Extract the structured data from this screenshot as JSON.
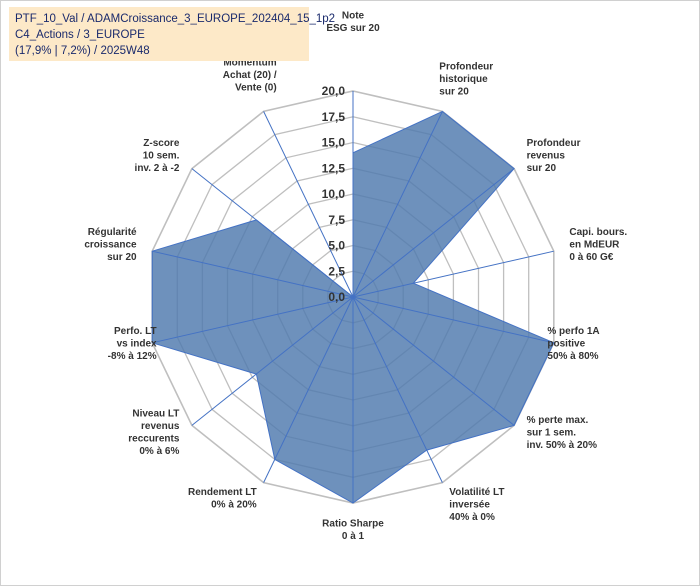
{
  "title_box": {
    "line1": "PTF_10_Val / ADAMCroissance_3_EUROPE_202404_15_1p2",
    "line2": "C4_Actions / 3_EUROPE",
    "line3": "(17,9% | 7,2%) / 2025W48"
  },
  "colors": {
    "fill": "#4e79ad",
    "stroke": "#4472c4",
    "grid": "#bfbfbf",
    "spoke": "#4472c4"
  },
  "chart_data": {
    "type": "radar",
    "r_range": [
      0,
      20
    ],
    "r_ticks": [
      "0,0",
      "2,5",
      "5,0",
      "7,5",
      "10,0",
      "12,5",
      "15,0",
      "17,5",
      "20,0"
    ],
    "categories": [
      {
        "label": [
          "Note",
          "ESG sur 20"
        ]
      },
      {
        "label": [
          "Profondeur",
          "historique",
          "sur 20"
        ]
      },
      {
        "label": [
          "Profondeur",
          "revenus",
          "sur 20"
        ]
      },
      {
        "label": [
          "Capi. bours.",
          "en MdEUR",
          "0 à 60 G€"
        ]
      },
      {
        "label": [
          "% perfo 1A",
          "positive",
          "50% à 80%"
        ]
      },
      {
        "label": [
          "% perte max.",
          "sur 1 sem.",
          "inv. 50% à 20%"
        ]
      },
      {
        "label": [
          "Volatilité LT",
          "inversée",
          "40% à 0%"
        ]
      },
      {
        "label": [
          "Ratio Sharpe",
          "0 à 1"
        ]
      },
      {
        "label": [
          "Rendement LT",
          "0% à 20%"
        ]
      },
      {
        "label": [
          "Niveau LT",
          "revenus",
          "reccurents",
          "0% à 6%"
        ]
      },
      {
        "label": [
          "Perfo. LT",
          "vs index",
          "-8% à 12%"
        ]
      },
      {
        "label": [
          "Régularité",
          "croissance",
          "sur 20"
        ]
      },
      {
        "label": [
          "Z-score",
          "10 sem.",
          "inv. 2 à -2"
        ]
      },
      {
        "label": [
          "Momentum",
          "Achat (20) /",
          "Vente (0)"
        ]
      }
    ],
    "series": [
      {
        "values": [
          14,
          20,
          20,
          6,
          20,
          20,
          16.5,
          20,
          17.5,
          12,
          20,
          20,
          12,
          0
        ]
      }
    ]
  }
}
